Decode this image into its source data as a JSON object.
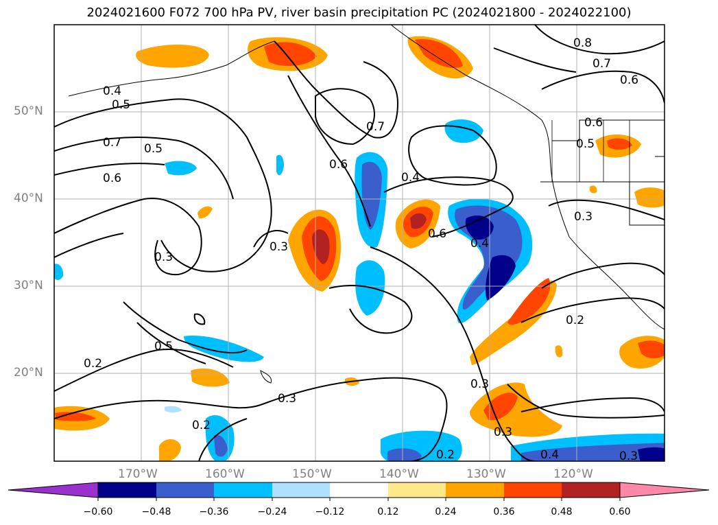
{
  "title": "2024021600 F072 700 hPa PV, river basin precipitation PC (2024021800 - 2024022100)",
  "lat_labels": [
    "50°N",
    "40°N",
    "30°N",
    "20°N"
  ],
  "lon_labels": [
    "170°W",
    "160°W",
    "150°W",
    "140°W",
    "130°W",
    "120°W"
  ],
  "contour_labels": [
    "0.8",
    "0.7",
    "0.6",
    "0.4",
    "0.5",
    "0.7",
    "0.6",
    "0.5",
    "0.7",
    "0.6",
    "0.4",
    "0.6",
    "0.5",
    "0.3",
    "0.3",
    "0.6",
    "0.4",
    "0.3",
    "0.5",
    "0.2",
    "0.2",
    "0.3",
    "0.3",
    "0.2",
    "0.2",
    "0.3",
    "0.4",
    "0.3"
  ],
  "colorbar": {
    "ticks": [
      "−0.60",
      "−0.48",
      "−0.36",
      "−0.24",
      "−0.12",
      "0.12",
      "0.24",
      "0.36",
      "0.48",
      "0.60"
    ],
    "colors": [
      "#9932cc",
      "#00008b",
      "#3a5fcd",
      "#00bfff",
      "#b0e2ff",
      "#ffffff",
      "#ffe98a",
      "#ffa500",
      "#ff4500",
      "#b22222",
      "#ff88aa"
    ]
  },
  "colors": {
    "pos1": "#ffe98a",
    "pos2": "#ffa500",
    "pos3": "#ff4500",
    "pos4": "#b22222",
    "neg1": "#b0e2ff",
    "neg2": "#00bfff",
    "neg3": "#3a5fcd",
    "neg4": "#00008b",
    "grid": "#b0b0b0",
    "contour": "#000000"
  }
}
